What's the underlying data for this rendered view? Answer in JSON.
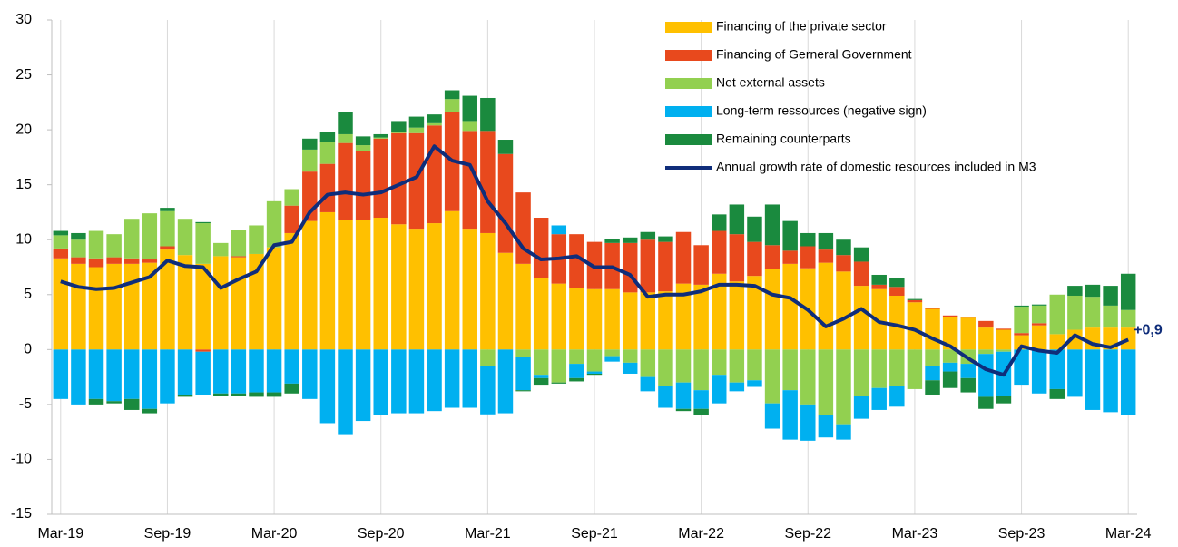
{
  "chart_data": {
    "type": "bar",
    "stacked": true,
    "categories": [
      "Mar-19",
      null,
      null,
      null,
      null,
      null,
      "Sep-19",
      null,
      null,
      null,
      null,
      null,
      "Mar-20",
      null,
      null,
      null,
      null,
      null,
      "Sep-20",
      null,
      null,
      null,
      null,
      null,
      "Mar-21",
      null,
      null,
      null,
      null,
      null,
      "Sep-21",
      null,
      null,
      null,
      null,
      null,
      "Mar-22",
      null,
      null,
      null,
      null,
      null,
      "Sep-22",
      null,
      null,
      null,
      null,
      null,
      "Mar-23",
      null,
      null,
      null,
      null,
      null,
      "Sep-23",
      null,
      null,
      null,
      null,
      null,
      "Mar-24"
    ],
    "ylim": [
      -15,
      30
    ],
    "yticks": [
      -15,
      -10,
      -5,
      0,
      5,
      10,
      15,
      20,
      25,
      30
    ],
    "grid": true,
    "series": [
      {
        "name": "Financing of the private sector",
        "type": "bar",
        "color": "#FFC000",
        "values": [
          8.3,
          7.8,
          7.5,
          7.8,
          7.8,
          7.9,
          9.1,
          8.6,
          7.8,
          8.5,
          8.4,
          8.7,
          9.3,
          10.6,
          11.7,
          12.5,
          11.8,
          11.8,
          12.0,
          11.4,
          11.0,
          11.5,
          12.6,
          11.0,
          10.6,
          8.8,
          7.8,
          6.5,
          6.0,
          5.6,
          5.5,
          5.5,
          5.2,
          5.2,
          5.3,
          6.0,
          5.9,
          6.9,
          6.2,
          6.7,
          7.3,
          7.8,
          7.4,
          7.9,
          7.1,
          5.8,
          5.5,
          4.9,
          4.3,
          3.7,
          3.0,
          2.9,
          2.0,
          1.8,
          1.3,
          2.2,
          1.4,
          1.8,
          2.0,
          2.0,
          2.0
        ]
      },
      {
        "name": "Financing of Gerneral Government",
        "type": "bar",
        "color": "#E8491D",
        "values": [
          0.9,
          0.6,
          0.8,
          0.6,
          0.5,
          0.3,
          0.3,
          0,
          -0.2,
          0,
          0.1,
          0,
          0,
          2.5,
          4.5,
          4.4,
          7.0,
          6.3,
          7.2,
          8.3,
          8.7,
          8.9,
          9.0,
          8.9,
          9.3,
          9.0,
          6.5,
          5.5,
          4.5,
          4.9,
          4.3,
          4.2,
          4.5,
          4.8,
          4.5,
          4.7,
          3.6,
          3.9,
          4.3,
          3.1,
          2.2,
          1.2,
          2.0,
          1.2,
          1.5,
          2.2,
          0.4,
          0.8,
          0.2,
          0.1,
          0.1,
          0.1,
          0.6,
          0.1,
          0.2,
          0.2,
          0,
          0,
          0,
          0,
          0
        ]
      },
      {
        "name": "Net external assets",
        "type": "bar",
        "color": "#92D050",
        "values": [
          1.2,
          1.6,
          2.5,
          2.1,
          3.6,
          4.2,
          3.2,
          3.3,
          3.7,
          1.2,
          2.4,
          2.6,
          4.2,
          1.5,
          2.0,
          2.0,
          0.8,
          0.5,
          0.1,
          0.1,
          0.5,
          0.2,
          1.2,
          0.9,
          -1.5,
          0,
          -0.7,
          -2.3,
          -3.0,
          -1.3,
          -2.0,
          -0.6,
          -1.2,
          -2.5,
          -3.3,
          -3.0,
          -3.7,
          -2.3,
          -3.0,
          -2.8,
          -4.9,
          -3.7,
          -5.0,
          -6.0,
          -6.8,
          -4.2,
          -3.5,
          -3.3,
          -3.6,
          -1.5,
          -1.2,
          -1.3,
          -0.4,
          -0.2,
          2.4,
          1.6,
          3.6,
          3.1,
          2.8,
          2.0,
          1.6
        ]
      },
      {
        "name": "Long-term ressources (negative sign)",
        "type": "bar",
        "color": "#00B0F0",
        "values": [
          -4.5,
          -5.0,
          -4.5,
          -4.7,
          -4.5,
          -5.4,
          -4.9,
          -4.1,
          -3.9,
          -4.0,
          -4.0,
          -3.9,
          -3.9,
          -3.1,
          -4.5,
          -6.7,
          -7.7,
          -6.5,
          -6.0,
          -5.8,
          -5.8,
          -5.6,
          -5.3,
          -5.3,
          -4.4,
          -5.8,
          -3.0,
          -0.3,
          0.8,
          -1.3,
          -0.2,
          -0.5,
          -1.0,
          -1.3,
          -2.0,
          -2.4,
          -1.7,
          -2.6,
          -0.8,
          -0.6,
          -2.3,
          -4.5,
          -3.3,
          -2.0,
          -1.4,
          -2.1,
          -2.0,
          -1.9,
          0,
          -1.3,
          -0.8,
          -1.3,
          -3.9,
          -4.0,
          -3.2,
          -4.0,
          -3.6,
          -4.3,
          -5.5,
          -5.7,
          -6.0
        ]
      },
      {
        "name": "Remaining counterparts",
        "type": "bar",
        "color": "#1A8A3E",
        "values": [
          0.4,
          0.6,
          -0.5,
          -0.2,
          -1.0,
          -0.4,
          0.3,
          -0.2,
          0.1,
          -0.2,
          -0.2,
          -0.4,
          -0.4,
          -0.9,
          1.0,
          0.9,
          2.0,
          0.8,
          0.3,
          1.0,
          1.0,
          0.8,
          0.8,
          2.3,
          3.0,
          1.3,
          -0.1,
          -0.6,
          -0.1,
          -0.3,
          -0.1,
          0.4,
          0.5,
          0.7,
          0.5,
          -0.2,
          -0.6,
          1.5,
          2.7,
          2.3,
          3.7,
          2.7,
          1.2,
          1.5,
          1.4,
          1.3,
          0.9,
          0.8,
          0.1,
          -1.3,
          -1.5,
          -1.3,
          -1.1,
          -0.7,
          0.1,
          0.1,
          -0.9,
          0.9,
          1.1,
          1.8,
          3.3
        ]
      },
      {
        "name": "Annual growth rate of domestic resources included in M3",
        "type": "line",
        "color": "#0F2D7A",
        "values": [
          6.2,
          5.7,
          5.5,
          5.6,
          6.1,
          6.6,
          8.1,
          7.6,
          7.5,
          5.6,
          6.4,
          7.1,
          9.5,
          9.8,
          12.5,
          14.1,
          14.3,
          14.1,
          14.3,
          15.0,
          15.7,
          18.5,
          17.2,
          16.8,
          13.5,
          11.5,
          9.2,
          8.2,
          8.3,
          8.5,
          7.5,
          7.5,
          6.8,
          4.8,
          5.0,
          5.0,
          5.3,
          5.9,
          5.9,
          5.8,
          5.0,
          4.7,
          3.6,
          2.1,
          2.8,
          3.7,
          2.5,
          2.2,
          1.8,
          1.0,
          0.3,
          -0.8,
          -1.8,
          -2.3,
          0.3,
          -0.1,
          -0.3,
          1.3,
          0.5,
          0.2,
          0.9
        ],
        "value_labels": [
          null,
          null,
          null,
          null,
          null,
          null,
          null,
          null,
          null,
          null,
          null,
          null,
          null,
          null,
          null,
          null,
          null,
          null,
          null,
          null,
          null,
          null,
          null,
          null,
          null,
          null,
          null,
          null,
          null,
          null,
          null,
          null,
          null,
          null,
          null,
          null,
          null,
          null,
          null,
          null,
          null,
          null,
          null,
          null,
          null,
          null,
          null,
          null,
          null,
          null,
          null,
          null,
          null,
          null,
          null,
          null,
          null,
          null,
          null,
          null,
          "+0,9"
        ]
      }
    ]
  }
}
